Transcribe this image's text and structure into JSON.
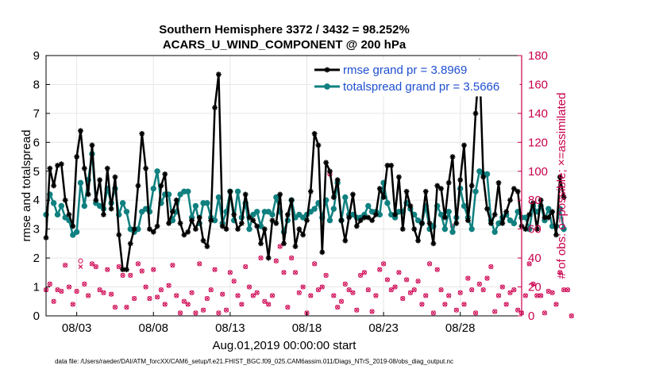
{
  "chart_data": {
    "type": "line",
    "title_line1": "Southern Hemisphere 3372 / 3432 = 98.252%",
    "title_line2": "ACARS_U_WIND_COMPONENT @ 200 hPa",
    "xlabel": "Aug.01,2019 00:00:00 start",
    "ylabel_left": "rmse and totalspread",
    "ylabel_right": "# of obs: o=possible; ×=assimilated",
    "footer": "data file: /Users/raeder/DAI/ATM_forcXX/CAM6_setup/f.e21.FHIST_BGC.f09_025.CAM6assim.011/Diags_NTrS_2019-08/obs_diag_output.nc",
    "xlim": [
      1.0,
      32.0
    ],
    "ylim_left": [
      0,
      9
    ],
    "ylim_right": [
      0,
      180
    ],
    "yticks_left": [
      "0",
      "1",
      "2",
      "3",
      "4",
      "5",
      "6",
      "7",
      "8",
      "9"
    ],
    "yticks_right": [
      "0",
      "20",
      "40",
      "60",
      "80",
      "100",
      "120",
      "140",
      "160",
      "180"
    ],
    "xticks": [
      {
        "value": 3,
        "label": "08/03"
      },
      {
        "value": 8,
        "label": "08/08"
      },
      {
        "value": 13,
        "label": "08/13"
      },
      {
        "value": 18,
        "label": "08/18"
      },
      {
        "value": 23,
        "label": "08/23"
      },
      {
        "value": 28,
        "label": "08/28"
      }
    ],
    "time_step_days": 0.25,
    "rmse": {
      "name": "rmse",
      "legend": "rmse grand pr = 3.8969",
      "color": "#000000",
      "values": [
        2.7,
        5.1,
        4.5,
        5.2,
        5.25,
        4.0,
        3.5,
        3.1,
        5.5,
        6.4,
        5.1,
        4.2,
        5.9,
        4.0,
        4.7,
        3.5,
        5.1,
        3.7,
        4.8,
        2.8,
        1.6,
        1.6,
        2.5,
        3.0,
        4.5,
        6.3,
        5.1,
        3.0,
        2.9,
        3.1,
        4.5,
        4.9,
        3.2,
        3.6,
        4.0,
        3.2,
        2.8,
        2.9,
        3.3,
        3.0,
        3.4,
        2.6,
        2.4,
        3.3,
        7.2,
        8.35,
        3.1,
        3.0,
        4.3,
        3.5,
        3.0,
        3.2,
        4.2,
        3.4,
        3.3,
        3.1,
        2.5,
        3.0,
        2.0,
        3.3,
        3.2,
        4.2,
        2.5,
        3.5,
        4.0,
        2.4,
        3.0,
        2.8,
        3.3,
        4.3,
        6.3,
        5.9,
        2.2,
        5.3,
        5.0,
        4.1,
        4.7,
        3.3,
        2.6,
        3.4,
        4.2,
        3.1,
        3.3,
        3.4,
        3.4,
        3.3,
        3.5,
        4.4,
        4.1,
        5.2,
        5.2,
        3.5,
        4.8,
        3.0,
        4.3,
        3.8,
        3.0,
        2.6,
        3.2,
        4.3,
        3.2,
        2.5,
        4.5,
        4.4,
        3.4,
        4.6,
        5.5,
        3.2,
        4.7,
        5.9,
        3.3,
        4.5,
        7.0,
        8.8,
        4.8,
        3.7,
        3.2,
        3.5,
        4.6,
        3.2,
        3.6,
        4.0,
        4.4,
        4.3,
        3.1,
        3.0,
        3.5,
        3.9,
        3.0,
        4.0,
        3.4,
        3.4,
        3.6,
        2.8,
        4.8,
        4.1
      ]
    },
    "totalspread": {
      "name": "totalspread",
      "legend": "totalspread grand pr = 3.5666",
      "color": "#108080",
      "values": [
        3.5,
        4.2,
        3.9,
        3.5,
        3.8,
        3.4,
        3.3,
        2.8,
        2.9,
        4.6,
        3.8,
        4.7,
        5.6,
        3.9,
        3.8,
        3.7,
        4.4,
        3.9,
        4.4,
        3.5,
        3.9,
        3.6,
        3.0,
        2.9,
        3.0,
        3.6,
        3.7,
        3.6,
        4.4,
        5.0,
        3.9,
        4.2,
        4.2,
        3.3,
        3.6,
        4.2,
        4.3,
        4.3,
        3.4,
        3.8,
        3.2,
        3.9,
        3.9,
        3.4,
        3.3,
        4.1,
        3.2,
        3.6,
        4.3,
        3.3,
        4.3,
        3.4,
        3.9,
        3.0,
        3.5,
        3.6,
        3.1,
        3.6,
        3.6,
        3.5,
        4.1,
        3.6,
        2.9,
        3.3,
        4.0,
        3.4,
        3.5,
        3.4,
        3.5,
        3.6,
        3.7,
        3.9,
        3.4,
        4.0,
        3.3,
        3.7,
        4.6,
        3.3,
        4.1,
        3.5,
        3.5,
        3.4,
        3.4,
        3.5,
        3.8,
        3.6,
        3.6,
        3.5,
        4.6,
        3.9,
        3.5,
        3.4,
        3.6,
        3.6,
        3.9,
        3.7,
        3.5,
        3.3,
        3.2,
        3.8,
        3.0,
        3.1,
        3.8,
        3.5,
        3.0,
        3.6,
        2.9,
        3.4,
        4.4,
        3.8,
        3.4,
        3.0,
        4.3,
        5.0,
        4.9,
        4.9,
        3.3,
        2.9,
        3.2,
        3.4,
        3.5,
        3.3,
        3.2,
        3.6,
        3.4,
        3.4,
        3.0,
        3.8,
        3.6,
        3.8,
        3.3,
        3.7,
        3.1,
        3.1,
        3.7,
        3.0
      ]
    },
    "obs_possible": {
      "name": "possible",
      "marker": "o",
      "color": "#d0105a",
      "values": [
        18,
        22,
        10,
        18,
        17,
        35,
        20,
        8,
        17,
        38,
        22,
        14,
        36,
        34,
        18,
        16,
        32,
        15,
        6,
        34,
        28,
        6,
        28,
        12,
        36,
        31,
        20,
        12,
        32,
        13,
        18,
        8,
        21,
        35,
        14,
        2,
        10,
        8,
        16,
        2,
        36,
        4,
        12,
        18,
        32,
        2,
        15,
        4,
        30,
        24,
        14,
        8,
        34,
        20,
        14,
        16,
        40,
        10,
        8,
        14,
        38,
        48,
        30,
        6,
        40,
        30,
        16,
        20,
        2,
        14,
        36,
        18,
        20,
        28,
        98,
        14,
        6,
        10,
        22,
        18,
        16,
        4,
        28,
        30,
        18,
        3,
        14,
        32,
        36,
        25,
        18,
        20,
        30,
        12,
        25,
        16,
        18,
        24,
        8,
        14,
        36,
        2,
        32,
        18,
        8,
        14,
        62,
        4,
        16,
        8,
        26,
        18,
        2,
        22,
        18,
        26,
        34,
        3,
        14,
        20,
        8,
        16,
        18,
        4,
        2,
        14,
        36,
        22,
        14,
        14,
        2,
        17,
        16,
        8,
        30,
        18,
        18,
        0
      ]
    },
    "obs_assimilated": {
      "name": "assimilated",
      "marker": "x",
      "color": "#d0105a",
      "values": [
        18,
        22,
        10,
        18,
        17,
        35,
        20,
        8,
        17,
        34,
        22,
        14,
        36,
        34,
        18,
        16,
        32,
        15,
        6,
        34,
        28,
        6,
        28,
        12,
        36,
        31,
        20,
        12,
        32,
        13,
        18,
        8,
        21,
        35,
        14,
        2,
        10,
        8,
        16,
        2,
        36,
        4,
        12,
        18,
        32,
        2,
        15,
        4,
        30,
        24,
        14,
        8,
        34,
        20,
        14,
        16,
        40,
        10,
        8,
        14,
        38,
        48,
        30,
        6,
        40,
        30,
        16,
        20,
        2,
        14,
        36,
        18,
        20,
        28,
        98,
        14,
        6,
        10,
        22,
        18,
        16,
        4,
        28,
        30,
        18,
        3,
        14,
        32,
        36,
        25,
        18,
        20,
        30,
        12,
        25,
        16,
        18,
        24,
        8,
        14,
        36,
        2,
        32,
        18,
        8,
        14,
        62,
        4,
        16,
        8,
        26,
        18,
        2,
        22,
        18,
        26,
        34,
        3,
        14,
        20,
        8,
        16,
        18,
        4,
        2,
        14,
        36,
        22,
        14,
        14,
        2,
        17,
        16,
        8,
        30,
        18,
        18,
        0
      ]
    }
  }
}
